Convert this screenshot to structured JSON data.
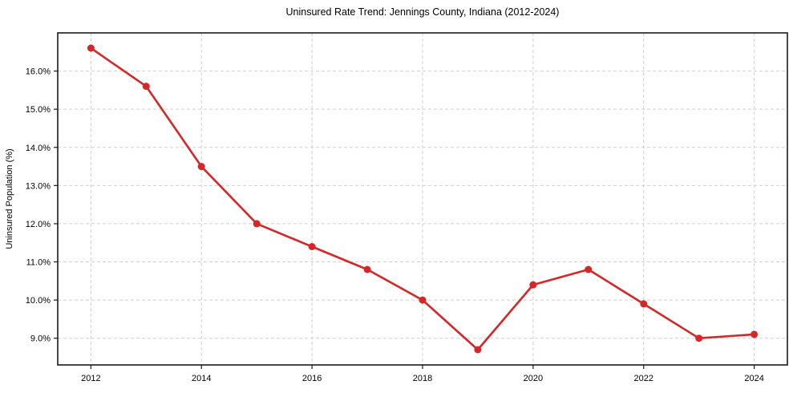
{
  "figure": {
    "title": "Uninsured Rate Trend: Jennings County, Indiana (2012-2024)"
  },
  "chart_data": {
    "type": "line",
    "title": "Uninsured Rate Trend: Jennings County, Indiana (2012-2024)",
    "xlabel": "",
    "ylabel": "Uninsured Population (%)",
    "x": [
      2012,
      2013,
      2014,
      2015,
      2016,
      2017,
      2018,
      2019,
      2020,
      2021,
      2022,
      2023,
      2024
    ],
    "values": [
      16.6,
      15.6,
      13.5,
      12.0,
      11.4,
      10.8,
      10.0,
      8.7,
      10.4,
      10.8,
      9.9,
      9.0,
      9.1
    ],
    "x_ticks": [
      2012,
      2014,
      2016,
      2018,
      2020,
      2022,
      2024
    ],
    "x_tick_labels": [
      "2012",
      "2014",
      "2016",
      "2018",
      "2020",
      "2022",
      "2024"
    ],
    "y_ticks": [
      9,
      10,
      11,
      12,
      13,
      14,
      15,
      16
    ],
    "y_tick_labels": [
      "9.0%",
      "10.0%",
      "11.0%",
      "12.0%",
      "13.0%",
      "14.0%",
      "15.0%",
      "16.0%"
    ],
    "xlim": [
      2011.4,
      2024.6
    ],
    "ylim": [
      8.3,
      17.0
    ],
    "grid": true,
    "grid_style": "dashed",
    "legend": null,
    "marker": "circle",
    "colors": {
      "line": "#d62728",
      "marker": "#d62728",
      "grid": "#cfcfcf",
      "spine": "#1a1a1a",
      "tick": "#1a1a1a",
      "text": "#000000",
      "background": "#ffffff"
    }
  }
}
